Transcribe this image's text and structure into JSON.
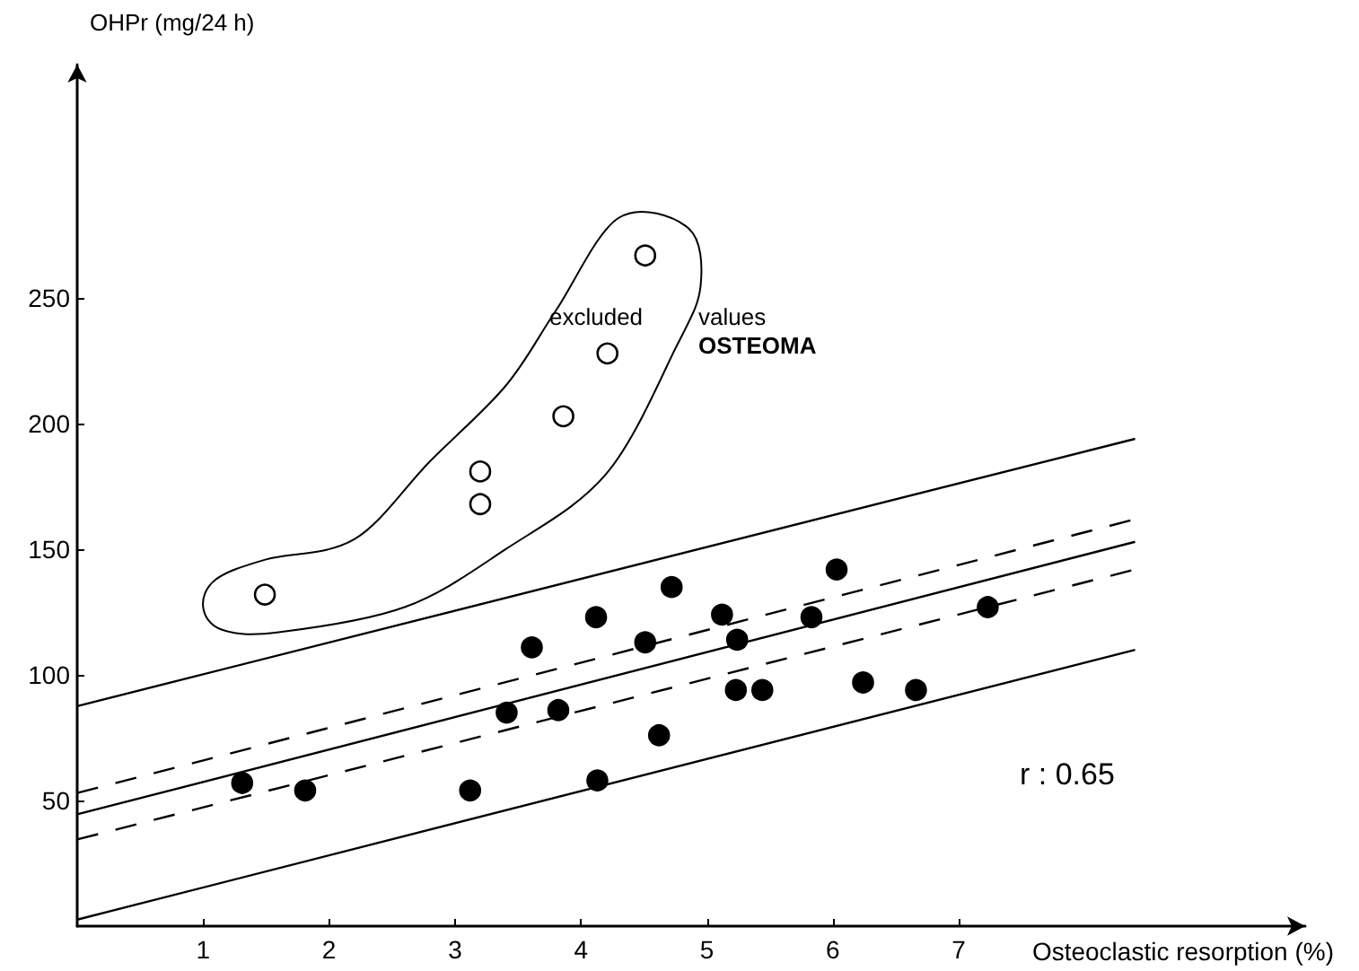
{
  "chart_data": {
    "type": "scatter",
    "xlabel": "Osteoclastic resorption (%)",
    "ylabel": "OHPr (mg/24 h)",
    "annotations": [
      "excluded",
      "values",
      "OSTEOMA",
      "r : 0.65"
    ],
    "xlim": [
      0,
      9.75
    ],
    "ylim": [
      0,
      343
    ],
    "xticks": [
      1,
      2,
      3,
      4,
      5,
      6,
      7
    ],
    "yticks": [
      50,
      100,
      150,
      200,
      250
    ],
    "grid": false,
    "marker": "circle",
    "series": [
      {
        "color": "#000000",
        "x": [
          1.31,
          1.81,
          3.12,
          3.41,
          3.61,
          3.82,
          4.12,
          4.13,
          4.51,
          4.62,
          4.72,
          5.12,
          5.24,
          5.23,
          5.44,
          5.83,
          6.03,
          6.24,
          6.66,
          7.23
        ],
        "values": [
          57,
          54,
          54,
          85,
          111,
          86,
          123,
          58,
          113,
          76,
          135,
          124,
          114,
          94,
          94,
          123,
          142,
          97,
          94,
          127
        ]
      },
      {
        "color": "#ffffff",
        "x": [
          1.49,
          3.2,
          3.2,
          3.86,
          4.21,
          4.51
        ],
        "values": [
          132,
          168,
          181,
          203,
          228,
          267
        ]
      },
      {
        "type": "line",
        "color": "#000000",
        "line_style": "solid",
        "marker": "none",
        "x": [
          0,
          8.4
        ],
        "values": [
          44.5,
          153
        ]
      },
      {
        "type": "line",
        "color": "#000000",
        "line_style": "dashed",
        "marker": "none",
        "x": [
          0,
          8.4
        ],
        "values": [
          53,
          162
        ]
      },
      {
        "type": "line",
        "color": "#000000",
        "line_style": "dashed",
        "marker": "none",
        "x": [
          0,
          8.4
        ],
        "values": [
          34.5,
          142
        ]
      },
      {
        "type": "line",
        "color": "#000000",
        "line_style": "solid",
        "marker": "none",
        "x": [
          0,
          8.4
        ],
        "values": [
          87.6,
          194
        ]
      },
      {
        "type": "line",
        "color": "#000000",
        "line_style": "solid",
        "marker": "none",
        "x": [
          0,
          8.4
        ],
        "values": [
          2.6,
          110
        ]
      }
    ]
  }
}
